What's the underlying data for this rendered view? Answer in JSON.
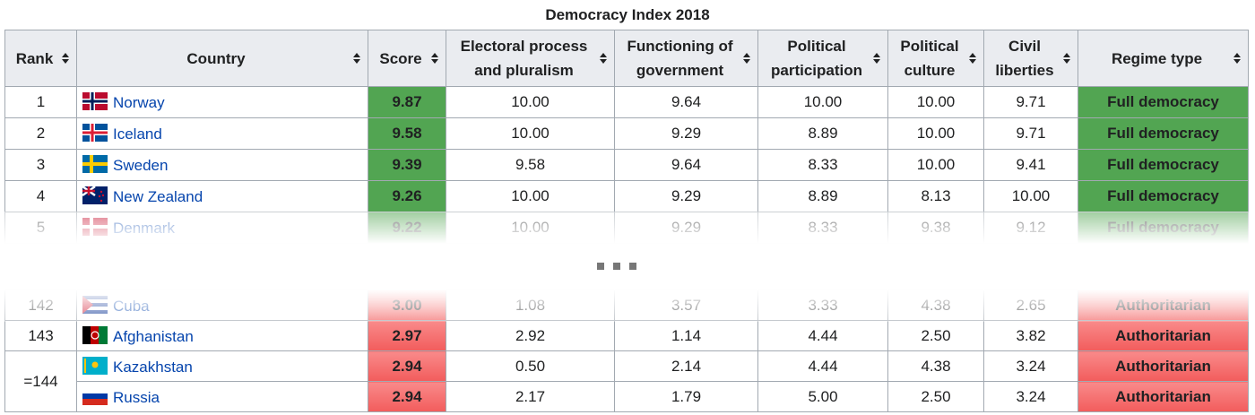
{
  "table": {
    "title": "Democracy Index 2018",
    "columns": [
      "Rank",
      "Country",
      "Score",
      "Electoral process and pluralism",
      "Functioning of government",
      "Political participation",
      "Political culture",
      "Civil liberties",
      "Regime type"
    ],
    "top_rows": [
      {
        "rank": "1",
        "country": "Norway",
        "score": "9.87",
        "electoral": "10.00",
        "functioning": "9.64",
        "participation": "10.00",
        "culture": "10.00",
        "liberties": "9.71",
        "regime": "Full democracy"
      },
      {
        "rank": "2",
        "country": "Iceland",
        "score": "9.58",
        "electoral": "10.00",
        "functioning": "9.29",
        "participation": "8.89",
        "culture": "10.00",
        "liberties": "9.71",
        "regime": "Full democracy"
      },
      {
        "rank": "3",
        "country": "Sweden",
        "score": "9.39",
        "electoral": "9.58",
        "functioning": "9.64",
        "participation": "8.33",
        "culture": "10.00",
        "liberties": "9.41",
        "regime": "Full democracy"
      },
      {
        "rank": "4",
        "country": "New Zealand",
        "score": "9.26",
        "electoral": "10.00",
        "functioning": "9.29",
        "participation": "8.89",
        "culture": "8.13",
        "liberties": "10.00",
        "regime": "Full democracy"
      },
      {
        "rank": "5",
        "country": "Denmark",
        "score": "9.22",
        "electoral": "10.00",
        "functioning": "9.29",
        "participation": "8.33",
        "culture": "9.38",
        "liberties": "9.12",
        "regime": "Full democracy"
      }
    ],
    "bottom_rows": [
      {
        "rank": "142",
        "country": "Cuba",
        "score": "3.00",
        "electoral": "1.08",
        "functioning": "3.57",
        "participation": "3.33",
        "culture": "4.38",
        "liberties": "2.65",
        "regime": "Authoritarian"
      },
      {
        "rank": "143",
        "country": "Afghanistan",
        "score": "2.97",
        "electoral": "2.92",
        "functioning": "1.14",
        "participation": "4.44",
        "culture": "2.50",
        "liberties": "3.82",
        "regime": "Authoritarian"
      },
      {
        "rank": "=144",
        "country": "Kazakhstan",
        "score": "2.94",
        "electoral": "0.50",
        "functioning": "2.14",
        "participation": "4.44",
        "culture": "4.38",
        "liberties": "3.24",
        "regime": "Authoritarian"
      },
      {
        "country": "Russia",
        "score": "2.94",
        "electoral": "2.17",
        "functioning": "1.79",
        "participation": "5.00",
        "culture": "2.50",
        "liberties": "3.24",
        "regime": "Authoritarian"
      }
    ]
  }
}
